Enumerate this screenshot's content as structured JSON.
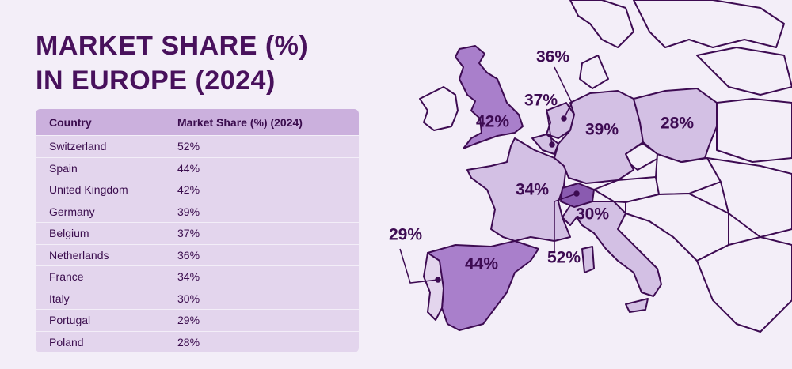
{
  "header": {
    "title": [
      "MARKET SHARE (%)",
      "IN EUROPE (2024)"
    ]
  },
  "table": {
    "columns": [
      "Country",
      "Market Share (%) (2024)"
    ],
    "rows": [
      [
        "Switzerland",
        "52%"
      ],
      [
        "Spain",
        "44%"
      ],
      [
        "United Kingdom",
        "42%"
      ],
      [
        "Germany",
        "39%"
      ],
      [
        "Belgium",
        "37%"
      ],
      [
        "Netherlands",
        "36%"
      ],
      [
        "France",
        "34%"
      ],
      [
        "Italy",
        "30%"
      ],
      [
        "Portugal",
        "29%"
      ],
      [
        "Poland",
        "28%"
      ]
    ]
  }
}
